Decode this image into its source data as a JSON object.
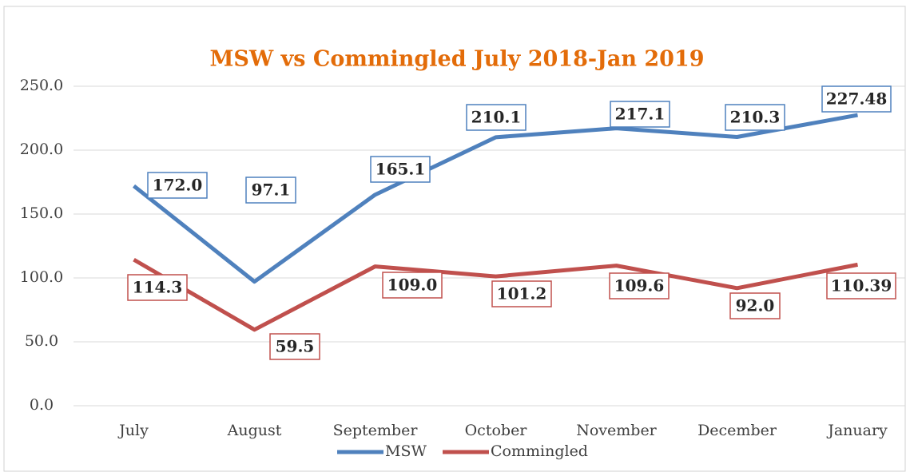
{
  "chart_data": {
    "type": "line",
    "title": "MSW vs Commingled July 2018-Jan 2019",
    "categories": [
      "July",
      "August",
      "September",
      "October",
      "November",
      "December",
      "January"
    ],
    "series": [
      {
        "name": "MSW",
        "color": "#4f81bd",
        "values": [
          172.0,
          97.1,
          165.1,
          210.1,
          217.1,
          210.3,
          227.48
        ],
        "value_labels": [
          "172.0",
          "97.1",
          "165.1",
          "210.1",
          "217.1",
          "210.3",
          "227.48"
        ]
      },
      {
        "name": "Commingled",
        "color": "#c0504d",
        "values": [
          114.3,
          59.5,
          109.0,
          101.2,
          109.6,
          92.0,
          110.39
        ],
        "value_labels": [
          "114.3",
          "59.5",
          "109.0",
          "101.2",
          "109.6",
          "92.0",
          "110.39"
        ]
      }
    ],
    "ylim": [
      0,
      250
    ],
    "yticks": [
      {
        "value": 0,
        "label": "0.0"
      },
      {
        "value": 50,
        "label": "50.0"
      },
      {
        "value": 100,
        "label": "100.0"
      },
      {
        "value": 150,
        "label": "150.0"
      },
      {
        "value": 200,
        "label": "200.0"
      },
      {
        "value": 250,
        "label": "250.0"
      }
    ],
    "grid": true,
    "legend": "bottom"
  }
}
